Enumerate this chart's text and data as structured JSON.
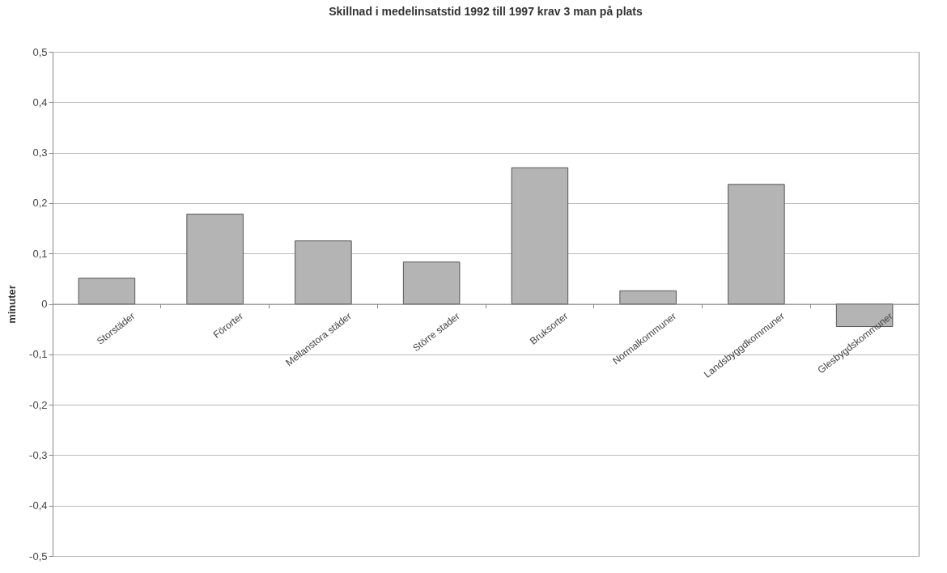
{
  "chart_data": {
    "type": "bar",
    "title": "Skillnad i medelinsatstid 1992 till 1997 krav 3 man på plats",
    "ylabel": "minuter",
    "categories": [
      "Storstäder",
      "Förorter",
      "Mellanstora städer",
      "Större stader",
      "Bruksorter",
      "Normalkommuner",
      "Landsbyggdkommuner",
      "Glesbygdskommuner"
    ],
    "values": [
      0.051,
      0.178,
      0.125,
      0.083,
      0.27,
      0.026,
      0.237,
      -0.045
    ],
    "color": "#b4b4b4",
    "ylim": [
      -0.5,
      0.5
    ],
    "yticks": [
      {
        "value": -0.5,
        "label": "-0,5"
      },
      {
        "value": -0.4,
        "label": "-0,4"
      },
      {
        "value": -0.3,
        "label": "-0,3"
      },
      {
        "value": -0.2,
        "label": "-0,2"
      },
      {
        "value": -0.1,
        "label": "-0,1"
      },
      {
        "value": 0,
        "label": "0"
      },
      {
        "value": 0.1,
        "label": "0,1"
      },
      {
        "value": 0.2,
        "label": "0,2"
      },
      {
        "value": 0.3,
        "label": "0,3"
      },
      {
        "value": 0.4,
        "label": "0,4"
      },
      {
        "value": 0.5,
        "label": "0,5"
      }
    ],
    "grid": "y"
  }
}
